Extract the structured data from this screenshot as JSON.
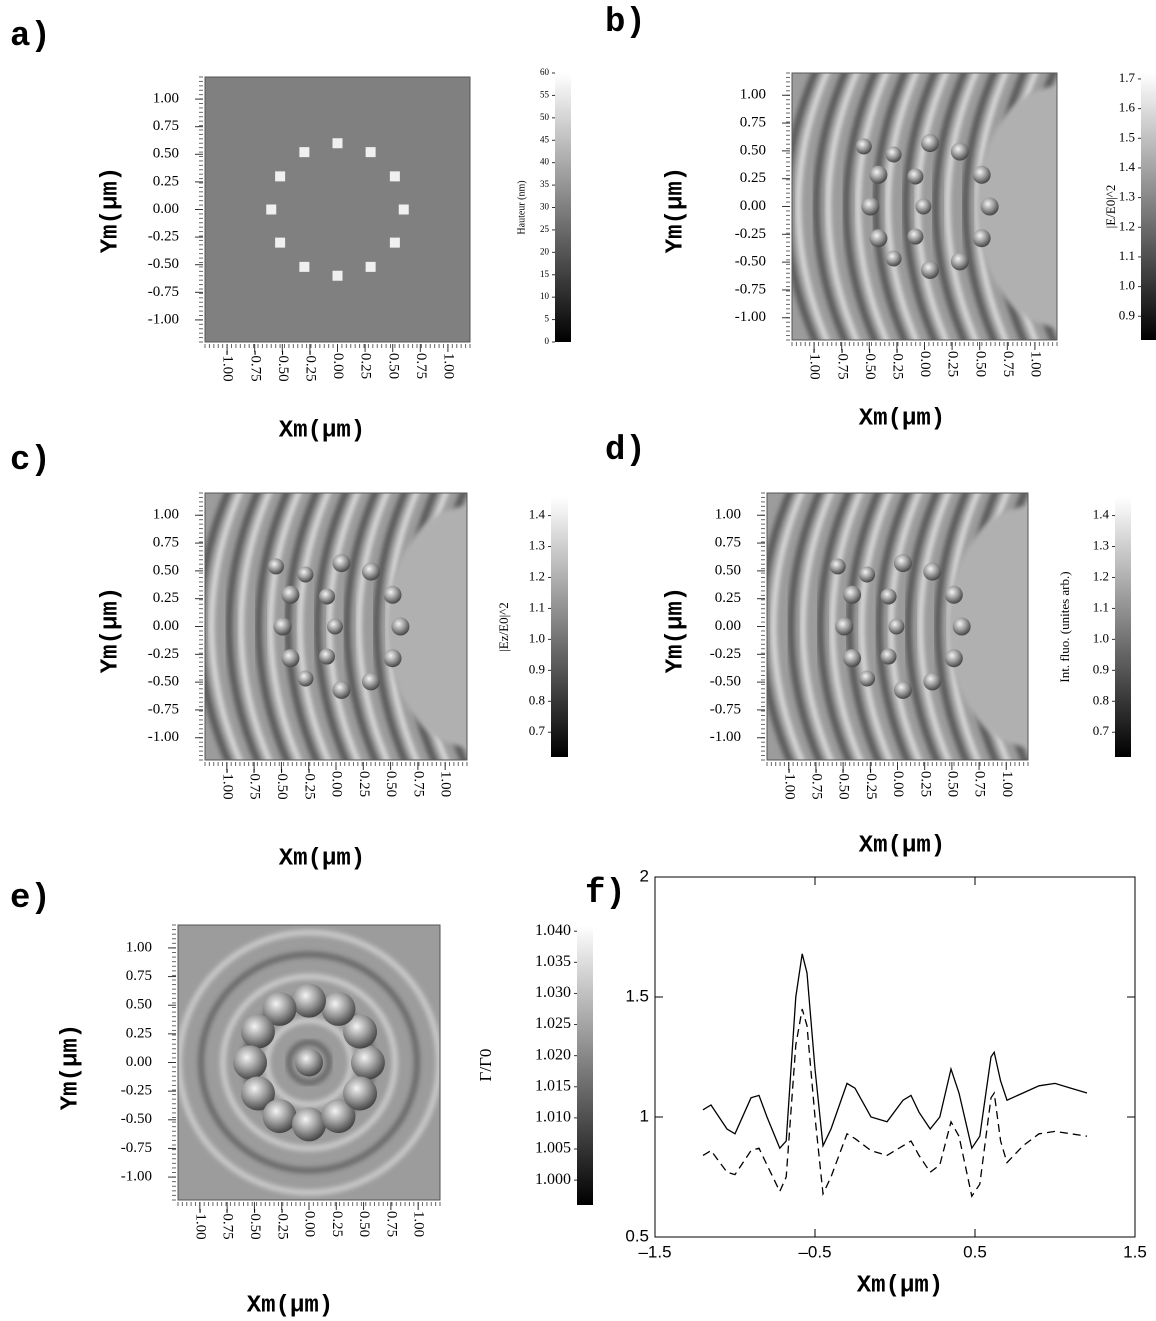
{
  "chart_data": [
    {
      "type": "heatmap",
      "panel_label": "a)",
      "xlabel": "Xm(μm)",
      "ylabel": "Ym(μm)",
      "xlim": [
        -1.2,
        1.2
      ],
      "ylim": [
        -1.2,
        1.2
      ],
      "xticks": [
        {
          "value": -1,
          "label": "-1.00"
        },
        -0.75,
        {
          "value": -0.5,
          "label": "-0.50"
        },
        -0.25,
        {
          "value": 0,
          "label": "0.00"
        },
        0.25,
        {
          "value": 0.5,
          "label": "0.50"
        },
        0.75,
        {
          "value": 1,
          "label": "1.00"
        }
      ],
      "yticks": [
        {
          "value": -1,
          "label": "-1.00"
        },
        -0.75,
        {
          "value": -0.5,
          "label": "-0.50"
        },
        -0.25,
        {
          "value": 0,
          "label": "0.00"
        },
        0.25,
        {
          "value": 0.5,
          "label": "0.50"
        },
        0.75,
        {
          "value": 1,
          "label": "1.00"
        }
      ],
      "colorbar_label": "Hauteur (nm)",
      "colorbar_lim": [
        0,
        60
      ],
      "colorbar_ticks": [
        0,
        5,
        10,
        15,
        20,
        25,
        30,
        35,
        40,
        45,
        50,
        55,
        60
      ]
    },
    {
      "type": "heatmap",
      "panel_label": "b)",
      "xlabel": "Xm(μm)",
      "ylabel": "Ym(μm)",
      "xlim": [
        -1.2,
        1.2
      ],
      "ylim": [
        -1.2,
        1.2
      ],
      "xticks": [
        {
          "value": -1,
          "label": "-1.00"
        },
        -0.75,
        {
          "value": -0.5,
          "label": "-0.50"
        },
        -0.25,
        {
          "value": 0,
          "label": "0.00"
        },
        0.25,
        {
          "value": 0.5,
          "label": "0.50"
        },
        0.75,
        {
          "value": 1,
          "label": "1.00"
        }
      ],
      "yticks": [
        {
          "value": -1,
          "label": "-1.00"
        },
        -0.75,
        {
          "value": -0.5,
          "label": "-0.50"
        },
        -0.25,
        {
          "value": 0,
          "label": "0.00"
        },
        0.25,
        {
          "value": 0.5,
          "label": "0.50"
        },
        0.75,
        {
          "value": 1,
          "label": "1.00"
        }
      ],
      "colorbar_label": "|E/E0|^2",
      "colorbar_lim": [
        0.82,
        1.72
      ],
      "colorbar_ticks": [
        0.9,
        {
          "value": 1,
          "label": "1.0"
        },
        1.1,
        1.2,
        1.3,
        1.4,
        1.5,
        1.6,
        1.7
      ]
    },
    {
      "type": "heatmap",
      "panel_label": "c)",
      "xlabel": "Xm(μm)",
      "ylabel": "Ym(μm)",
      "xlim": [
        -1.2,
        1.2
      ],
      "ylim": [
        -1.2,
        1.2
      ],
      "xticks": [
        {
          "value": -1,
          "label": "-1.00"
        },
        -0.75,
        {
          "value": -0.5,
          "label": "-0.50"
        },
        -0.25,
        {
          "value": 0,
          "label": "0.00"
        },
        0.25,
        {
          "value": 0.5,
          "label": "0.50"
        },
        0.75,
        {
          "value": 1,
          "label": "1.00"
        }
      ],
      "yticks": [
        {
          "value": -1,
          "label": "-1.00"
        },
        -0.75,
        {
          "value": -0.5,
          "label": "-0.50"
        },
        -0.25,
        {
          "value": 0,
          "label": "0.00"
        },
        0.25,
        {
          "value": 0.5,
          "label": "0.50"
        },
        0.75,
        {
          "value": 1,
          "label": "1.00"
        }
      ],
      "colorbar_label": "|Ez/E0|^2",
      "colorbar_lim": [
        0.62,
        1.46
      ],
      "colorbar_ticks": [
        0.7,
        0.8,
        0.9,
        {
          "value": 1,
          "label": "1.0"
        },
        1.1,
        1.2,
        1.3,
        1.4
      ]
    },
    {
      "type": "heatmap",
      "panel_label": "d)",
      "xlabel": "Xm(μm)",
      "ylabel": "Ym(μm)",
      "xlim": [
        -1.2,
        1.2
      ],
      "ylim": [
        -1.2,
        1.2
      ],
      "xticks": [
        {
          "value": -1,
          "label": "-1.00"
        },
        -0.75,
        {
          "value": -0.5,
          "label": "-0.50"
        },
        -0.25,
        {
          "value": 0,
          "label": "0.00"
        },
        0.25,
        {
          "value": 0.5,
          "label": "0.50"
        },
        0.75,
        {
          "value": 1,
          "label": "1.00"
        }
      ],
      "yticks": [
        {
          "value": -1,
          "label": "-1.00"
        },
        -0.75,
        {
          "value": -0.5,
          "label": "-0.50"
        },
        -0.25,
        {
          "value": 0,
          "label": "0.00"
        },
        0.25,
        {
          "value": 0.5,
          "label": "0.50"
        },
        0.75,
        {
          "value": 1,
          "label": "1.00"
        }
      ],
      "colorbar_label": "Int. fluo. (unites arb.)",
      "colorbar_lim": [
        0.62,
        1.46
      ],
      "colorbar_ticks": [
        0.7,
        0.8,
        0.9,
        {
          "value": 1,
          "label": "1.0"
        },
        1.1,
        1.2,
        1.3,
        1.4
      ]
    },
    {
      "type": "heatmap",
      "panel_label": "e)",
      "xlabel": "Xm(μm)",
      "ylabel": "Ym(μm)",
      "xlim": [
        -1.2,
        1.2
      ],
      "ylim": [
        -1.2,
        1.2
      ],
      "xticks": [
        {
          "value": -1,
          "label": "-1.00"
        },
        -0.75,
        {
          "value": -0.5,
          "label": "-0.50"
        },
        -0.25,
        {
          "value": 0,
          "label": "0.00"
        },
        0.25,
        {
          "value": 0.5,
          "label": "0.50"
        },
        0.75,
        {
          "value": 1,
          "label": "1.00"
        }
      ],
      "yticks": [
        {
          "value": -1,
          "label": "-1.00"
        },
        -0.75,
        {
          "value": -0.5,
          "label": "-0.50"
        },
        -0.25,
        {
          "value": 0,
          "label": "0.00"
        },
        0.25,
        {
          "value": 0.5,
          "label": "0.50"
        },
        0.75,
        {
          "value": 1,
          "label": "1.00"
        }
      ],
      "colorbar_label": "Γ/Γ0",
      "colorbar_lim": [
        0.996,
        1.041
      ],
      "colorbar_ticks": [
        {
          "value": 1,
          "label": "1.000"
        },
        1.005,
        {
          "value": 1.01,
          "label": "1.010"
        },
        1.015,
        {
          "value": 1.02,
          "label": "1.020"
        },
        1.025,
        {
          "value": 1.03,
          "label": "1.030"
        },
        1.035,
        {
          "value": 1.04,
          "label": "1.040"
        }
      ]
    },
    {
      "type": "line",
      "panel_label": "f)",
      "xlabel": "Xm(μm)",
      "xlim": [
        -1.5,
        1.5
      ],
      "ylim": [
        0.5,
        2
      ],
      "xticks": [
        {
          "value": -1.5,
          "label": "–1.5"
        },
        {
          "value": -0.5,
          "label": "–0.5"
        },
        0.5,
        1.5
      ],
      "yticks": [
        0.5,
        1,
        1.5,
        2
      ],
      "x": [
        -1.2,
        -1.15,
        -1.05,
        -1.0,
        -0.9,
        -0.85,
        -0.8,
        -0.72,
        -0.68,
        -0.62,
        -0.58,
        -0.55,
        -0.5,
        -0.45,
        -0.4,
        -0.3,
        -0.25,
        -0.15,
        -0.05,
        0.05,
        0.1,
        0.15,
        0.22,
        0.28,
        0.35,
        0.4,
        0.48,
        0.53,
        0.6,
        0.62,
        0.66,
        0.7,
        0.8,
        0.9,
        1.0,
        1.1,
        1.2
      ],
      "series": [
        {
          "color": "#000000",
          "dash": "solid",
          "values": [
            1.03,
            1.05,
            0.95,
            0.93,
            1.08,
            1.09,
            1.0,
            0.87,
            0.9,
            1.5,
            1.68,
            1.6,
            1.2,
            0.88,
            0.95,
            1.14,
            1.12,
            1.0,
            0.98,
            1.07,
            1.09,
            1.02,
            0.95,
            1.0,
            1.2,
            1.1,
            0.87,
            0.92,
            1.25,
            1.27,
            1.15,
            1.07,
            1.1,
            1.13,
            1.14,
            1.12,
            1.1
          ]
        },
        {
          "color": "#000000",
          "dash": "dashed",
          "values": [
            0.84,
            0.86,
            0.77,
            0.76,
            0.86,
            0.87,
            0.8,
            0.69,
            0.75,
            1.3,
            1.45,
            1.38,
            1.0,
            0.68,
            0.75,
            0.93,
            0.91,
            0.86,
            0.84,
            0.88,
            0.9,
            0.84,
            0.77,
            0.8,
            0.98,
            0.92,
            0.67,
            0.72,
            1.08,
            1.1,
            0.9,
            0.81,
            0.88,
            0.93,
            0.94,
            0.93,
            0.92
          ]
        }
      ]
    }
  ]
}
